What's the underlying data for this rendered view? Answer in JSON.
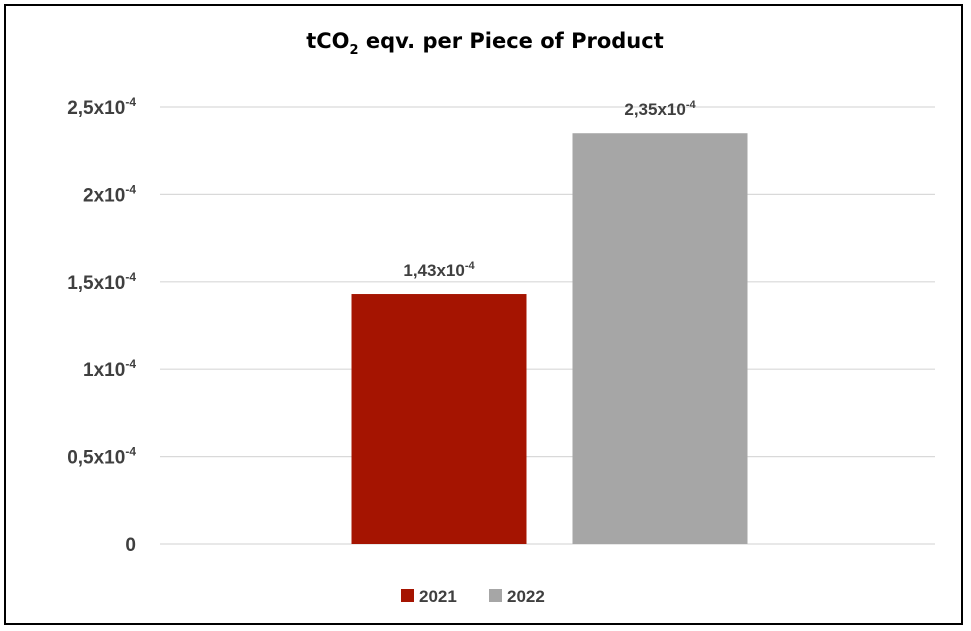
{
  "chart_data": {
    "type": "bar",
    "title": {
      "prefix": "tCO",
      "sub": "2",
      "suffix": " eqv. per Piece of Product"
    },
    "categories": [
      "2021",
      "2022"
    ],
    "values": [
      0.000143,
      0.000235
    ],
    "colors": [
      "#a51401",
      "#a6a6a6"
    ],
    "data_labels": [
      {
        "mantissa": "1,43x10",
        "exp": "-4"
      },
      {
        "mantissa": "2,35x10",
        "exp": "-4"
      }
    ],
    "ylim": [
      0,
      0.00025
    ],
    "yticks": [
      {
        "value": 0,
        "base": "0",
        "exp": ""
      },
      {
        "value": 5e-05,
        "base": "0,5x10",
        "exp": "-4"
      },
      {
        "value": 0.0001,
        "base": "1x10",
        "exp": "-4"
      },
      {
        "value": 0.00015,
        "base": "1,5x10",
        "exp": "-4"
      },
      {
        "value": 0.0002,
        "base": "2x10",
        "exp": "-4"
      },
      {
        "value": 0.00025,
        "base": "2,5x10",
        "exp": "-4"
      }
    ],
    "grid": true,
    "legend": {
      "position": "bottom",
      "entries": [
        "2021",
        "2022"
      ]
    }
  }
}
